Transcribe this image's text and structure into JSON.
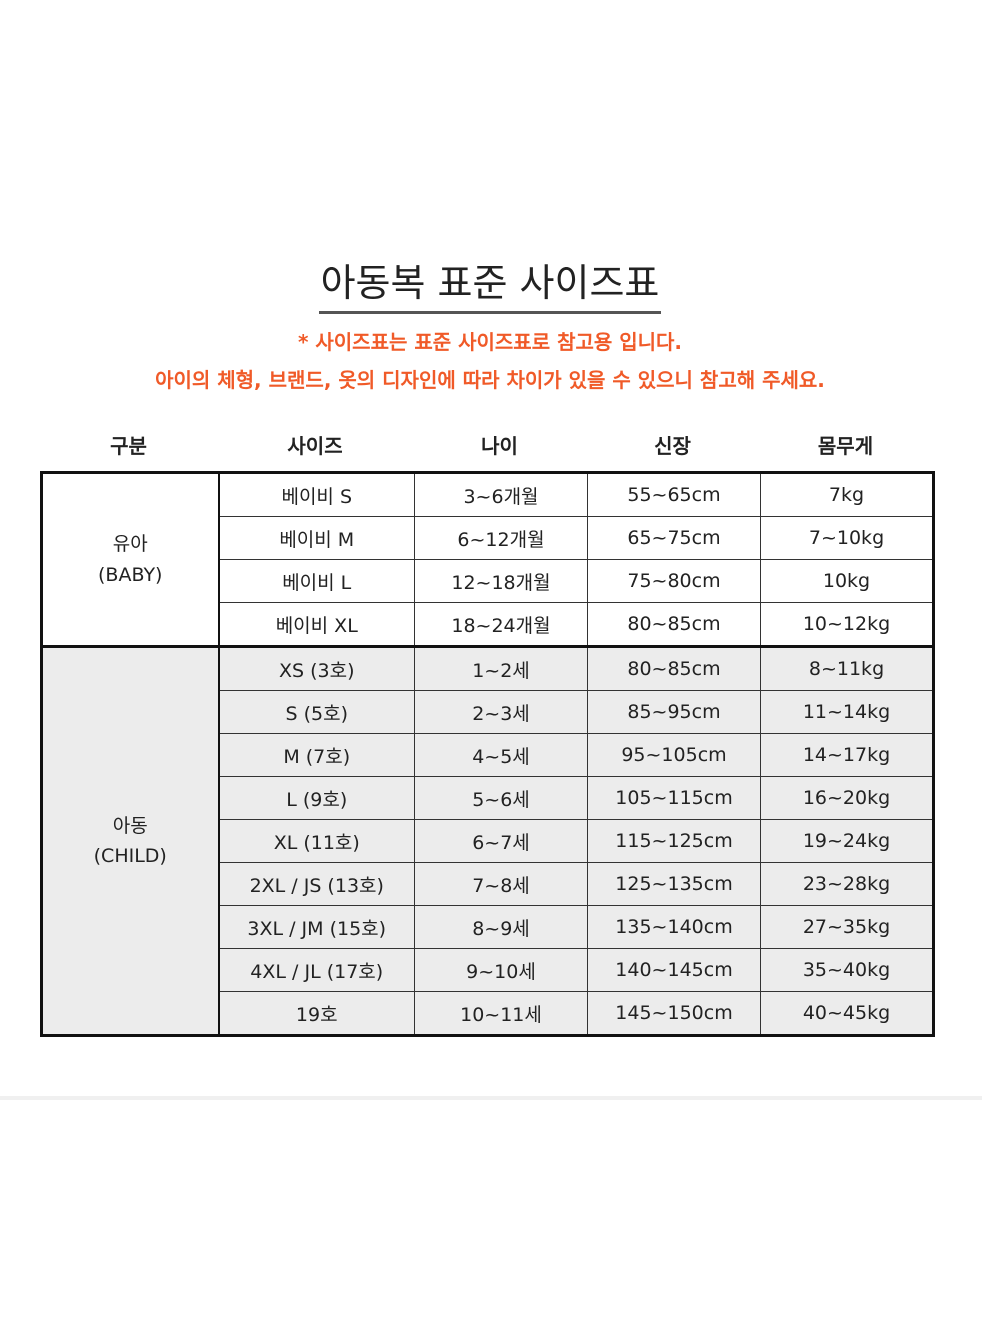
{
  "title": "아동복 표준 사이즈표",
  "notes": [
    "* 사이즈표는 표준 사이즈표로 참고용 입니다.",
    "아이의 체형, 브랜드, 옷의 디자인에 따라 차이가 있을 수 있으니 참고해 주세요."
  ],
  "accent_color": "#f05a28",
  "headers": [
    "구분",
    "사이즈",
    "나이",
    "신장",
    "몸무게"
  ],
  "groups": [
    {
      "name": "유아",
      "sub": "(BABY)",
      "rows": [
        [
          "베이비 S",
          "3~6개월",
          "55~65cm",
          "7kg"
        ],
        [
          "베이비 M",
          "6~12개월",
          "65~75cm",
          "7~10kg"
        ],
        [
          "베이비 L",
          "12~18개월",
          "75~80cm",
          "10kg"
        ],
        [
          "베이비 XL",
          "18~24개월",
          "80~85cm",
          "10~12kg"
        ]
      ]
    },
    {
      "name": "아동",
      "sub": "(CHILD)",
      "rows": [
        [
          "XS (3호)",
          "1~2세",
          "80~85cm",
          "8~11kg"
        ],
        [
          "S (5호)",
          "2~3세",
          "85~95cm",
          "11~14kg"
        ],
        [
          "M (7호)",
          "4~5세",
          "95~105cm",
          "14~17kg"
        ],
        [
          "L (9호)",
          "5~6세",
          "105~115cm",
          "16~20kg"
        ],
        [
          "XL (11호)",
          "6~7세",
          "115~125cm",
          "19~24kg"
        ],
        [
          "2XL / JS (13호)",
          "7~8세",
          "125~135cm",
          "23~28kg"
        ],
        [
          "3XL / JM (15호)",
          "8~9세",
          "135~140cm",
          "27~35kg"
        ],
        [
          "4XL / JL (17호)",
          "9~10세",
          "140~145cm",
          "35~40kg"
        ],
        [
          "19호",
          "10~11세",
          "145~150cm",
          "40~45kg"
        ]
      ]
    }
  ]
}
